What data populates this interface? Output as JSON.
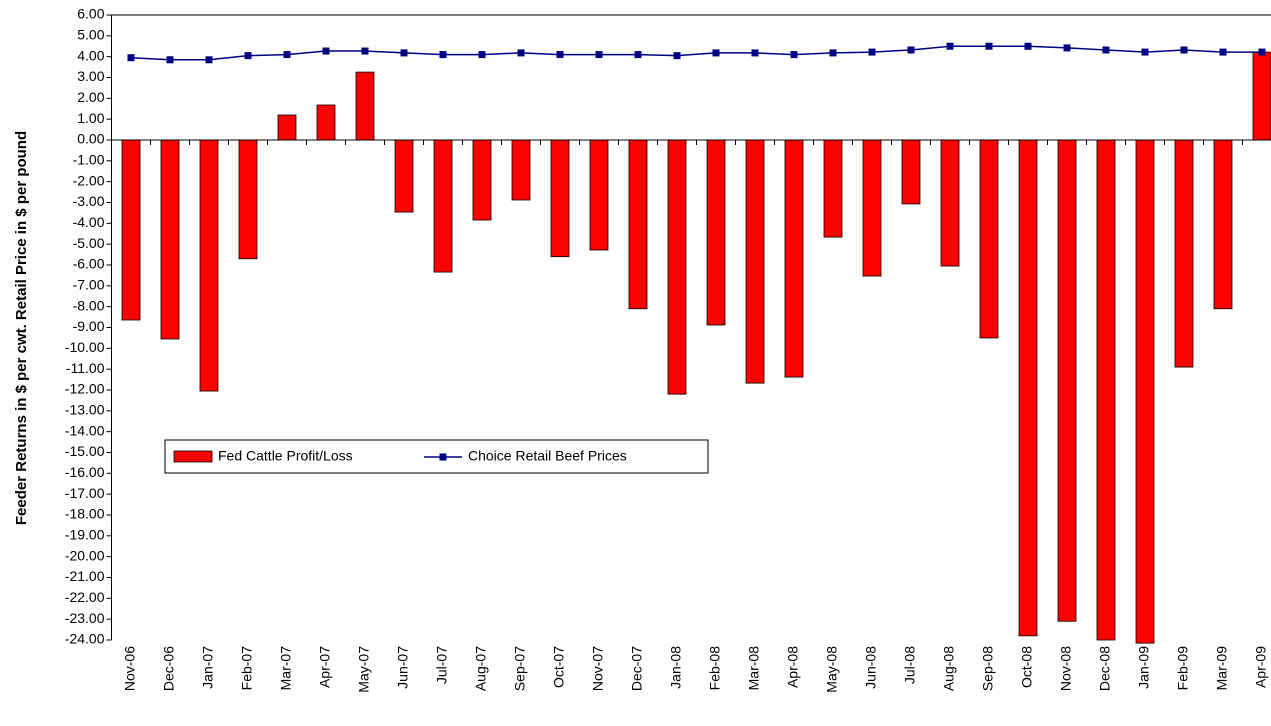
{
  "chart_data": {
    "type": "bar",
    "y_label": "Feeder Returns in $ per cwt. Retail Price in $ per pound",
    "categories": [
      "Nov-06",
      "Dec-06",
      "Jan-07",
      "Feb-07",
      "Mar-07",
      "Apr-07",
      "May-07",
      "Jun-07",
      "Jul-07",
      "Aug-07",
      "Sep-07",
      "Oct-07",
      "Nov-07",
      "Dec-07",
      "Jan-08",
      "Feb-08",
      "Mar-08",
      "Apr-08",
      "May-08",
      "Jun-08",
      "Jul-08",
      "Aug-08",
      "Sep-08",
      "Oct-08",
      "Nov-08",
      "Dec-08",
      "Jan-09",
      "Feb-09",
      "Mar-09",
      "Apr-09"
    ],
    "series": [
      {
        "name": "Fed Cattle Profit/Loss",
        "type": "bar",
        "color": "#ff0000",
        "values": [
          -8.64,
          -9.55,
          -12.05,
          -5.7,
          1.2,
          1.68,
          3.26,
          -3.46,
          -6.34,
          -3.84,
          -2.88,
          -5.6,
          -5.28,
          -8.1,
          -12.2,
          -8.88,
          -11.67,
          -11.38,
          -4.66,
          -6.53,
          -3.07,
          -6.05,
          -9.5,
          -23.8,
          -23.1,
          -24.0,
          -24.15,
          -10.9,
          -8.1,
          4.22
        ]
      },
      {
        "name": "Choice Retail Beef Prices",
        "type": "line",
        "color": "#000080",
        "values": [
          3.95,
          3.85,
          3.85,
          4.05,
          4.1,
          4.27,
          4.27,
          4.18,
          4.1,
          4.1,
          4.18,
          4.1,
          4.1,
          4.1,
          4.05,
          4.18,
          4.18,
          4.1,
          4.18,
          4.22,
          4.32,
          4.5,
          4.5,
          4.5,
          4.42,
          4.32,
          4.22,
          4.32,
          4.22,
          4.22
        ]
      }
    ],
    "ylim": [
      -24,
      6
    ],
    "yticks": [
      {
        "value": 6,
        "label": "6.00"
      },
      {
        "value": 5,
        "label": "5.00"
      },
      {
        "value": 4,
        "label": "4.00"
      },
      {
        "value": 3,
        "label": "3.00"
      },
      {
        "value": 2,
        "label": "2.00"
      },
      {
        "value": 1,
        "label": "1.00"
      },
      {
        "value": 0,
        "label": "0.00"
      },
      {
        "value": -1,
        "label": "-1.00"
      },
      {
        "value": -2,
        "label": "-2.00"
      },
      {
        "value": -3,
        "label": "-3.00"
      },
      {
        "value": -4,
        "label": "-4.00"
      },
      {
        "value": -5,
        "label": "-5.00"
      },
      {
        "value": -6,
        "label": "-6.00"
      },
      {
        "value": -7,
        "label": "-7.00"
      },
      {
        "value": -8,
        "label": "-8.00"
      },
      {
        "value": -9,
        "label": "-9.00"
      },
      {
        "value": -10,
        "label": "-10.00"
      },
      {
        "value": -11,
        "label": "-11.00"
      },
      {
        "value": -12,
        "label": "-12.00"
      },
      {
        "value": -13,
        "label": "-13.00"
      },
      {
        "value": -14,
        "label": "-14.00"
      },
      {
        "value": -15,
        "label": "-15.00"
      },
      {
        "value": -16,
        "label": "-16.00"
      },
      {
        "value": -17,
        "label": "-17.00"
      },
      {
        "value": -18,
        "label": "-18.00"
      },
      {
        "value": -19,
        "label": "-19.00"
      },
      {
        "value": -20,
        "label": "-20.00"
      },
      {
        "value": -21,
        "label": "-21.00"
      },
      {
        "value": -22,
        "label": "-22.00"
      },
      {
        "value": -23,
        "label": "-23.00"
      },
      {
        "value": -24,
        "label": "-24.00"
      }
    ],
    "grid": false
  }
}
